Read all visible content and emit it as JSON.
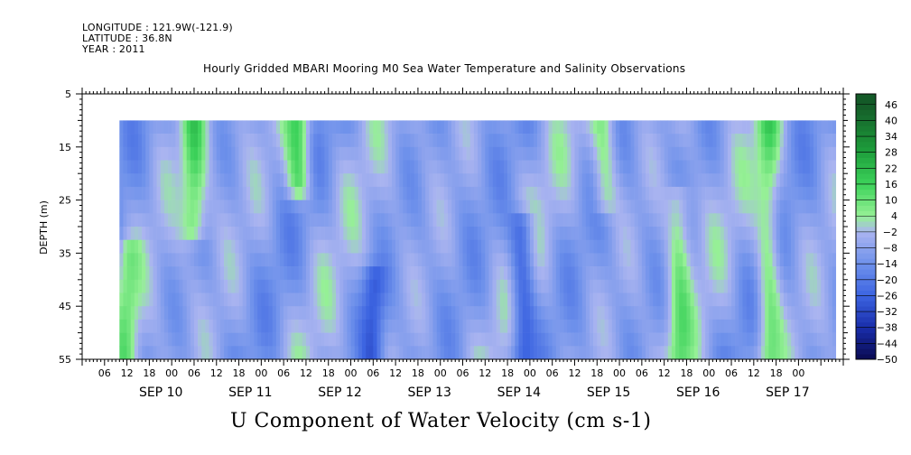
{
  "header": {
    "longitude": "LONGITUDE : 121.9W(-121.9)",
    "latitude": "LATITUDE : 36.8N",
    "year": "YEAR : 2011"
  },
  "chart_data": {
    "type": "heatmap",
    "title": "Hourly Gridded MBARI Mooring M0 Sea Water Temperature and Salinity Observations",
    "main_label": "U Component of Water Velocity (cm s-1)",
    "ylabel": "DEPTH (m)",
    "xlabel": "",
    "x_range_hours_from_sep9_00": [
      0,
      204
    ],
    "data_start_hour": 10,
    "data_end_hour": 202,
    "y_range_depth_m": [
      5,
      55
    ],
    "data_depth_range_m": [
      10,
      55
    ],
    "y_ticks": [
      5,
      15,
      25,
      35,
      45,
      55
    ],
    "x_hour_ticks": [
      "06",
      "12",
      "18",
      "00",
      "06",
      "12",
      "18",
      "00",
      "06",
      "12",
      "18",
      "00",
      "06",
      "12",
      "18",
      "00",
      "06",
      "12",
      "18",
      "00",
      "06",
      "12",
      "18",
      "00",
      "06",
      "12",
      "18",
      "00",
      "06",
      "12",
      "18",
      "00"
    ],
    "day_labels": [
      "SEP 10",
      "SEP 11",
      "SEP 12",
      "SEP 13",
      "SEP 14",
      "SEP 15",
      "SEP 16",
      "SEP 17"
    ],
    "colorbar": {
      "levels": [
        -50,
        -44,
        -38,
        -32,
        -26,
        -20,
        -14,
        -8,
        -2,
        4,
        10,
        16,
        22,
        28,
        34,
        40,
        46
      ],
      "range": [
        -50,
        50
      ]
    },
    "features": [
      {
        "hour": 30,
        "depth_top": 10,
        "depth_bottom": 30,
        "u": 14
      },
      {
        "hour": 58,
        "depth_top": 10,
        "depth_bottom": 22,
        "u": 18
      },
      {
        "hour": 140,
        "depth_top": 10,
        "depth_bottom": 25,
        "u": 8
      },
      {
        "hour": 184,
        "depth_top": 10,
        "depth_bottom": 55,
        "u": 12
      },
      {
        "hour": 160,
        "depth_top": 25,
        "depth_bottom": 55,
        "u": 9
      },
      {
        "hour": 12,
        "depth_top": 35,
        "depth_bottom": 55,
        "u": 8
      },
      {
        "hour": 78,
        "depth_top": 40,
        "depth_bottom": 55,
        "u": -24
      },
      {
        "hour": 118,
        "depth_top": 30,
        "depth_bottom": 55,
        "u": -26
      }
    ],
    "grid": false,
    "legend": "right"
  }
}
